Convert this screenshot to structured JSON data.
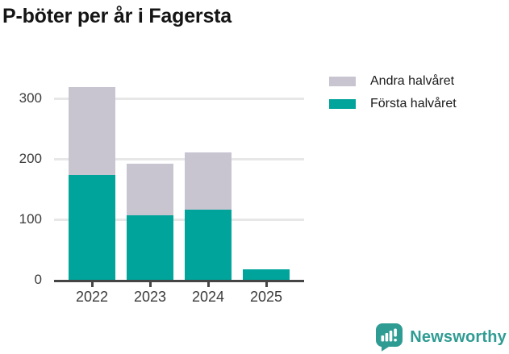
{
  "title": "P-böter per år i Fagersta",
  "legend": [
    {
      "label": "Andra halvåret",
      "color": "#c8c5d1"
    },
    {
      "label": "Första halvåret",
      "color": "#00a49b"
    }
  ],
  "chart_data": {
    "type": "bar",
    "stacked": true,
    "title": "P-böter per år i Fagersta",
    "categories": [
      "2022",
      "2023",
      "2024",
      "2025"
    ],
    "series": [
      {
        "name": "Första halvåret",
        "color": "#00a49b",
        "values": [
          173,
          107,
          116,
          17
        ]
      },
      {
        "name": "Andra halvåret",
        "color": "#c8c5d1",
        "values": [
          146,
          85,
          95,
          0
        ]
      }
    ],
    "totals": [
      319,
      192,
      211,
      17
    ],
    "xlabel": "",
    "ylabel": "",
    "ylim": [
      0,
      340
    ],
    "yticks": [
      0,
      100,
      200,
      300
    ],
    "grid": true,
    "legend_position": "top-right"
  },
  "colors": {
    "bar_teal": "#00a49b",
    "bar_gray": "#c8c5d1",
    "axis": "#454545",
    "gridline": "#e7e7e7",
    "tick_text": "#3b3b3b",
    "title_text": "#151515",
    "logo_teal": "#2f9c93",
    "background": "#ffffff"
  },
  "logo": {
    "text": "Newsworthy"
  }
}
